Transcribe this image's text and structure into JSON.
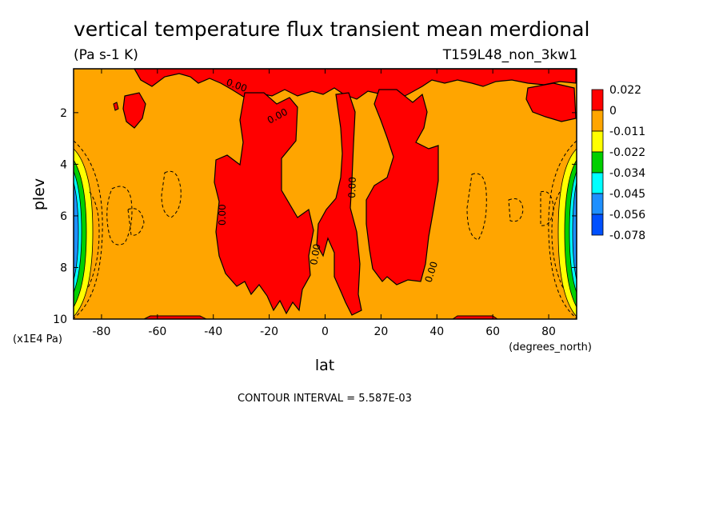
{
  "chart_data": {
    "type": "heatmap",
    "title": "vertical temperature flux transient mean merdional",
    "units": "(Pa s-1 K)",
    "dataset": "T159L48_non_3kw1",
    "xlabel": "lat",
    "xunits": "(degrees_north)",
    "ylabel": "plev",
    "yunits": "(x1E4 Pa)",
    "xlim": [
      -90,
      90
    ],
    "ylim": [
      0.3,
      10
    ],
    "y_inverted": true,
    "x_ticks": [
      -80,
      -60,
      -40,
      -20,
      0,
      20,
      40,
      60,
      80
    ],
    "x_tick_labels": [
      "-80",
      "-60",
      "-40",
      "-20",
      "0",
      "20",
      "40",
      "60",
      "80"
    ],
    "y_ticks": [
      2,
      4,
      6,
      8,
      10
    ],
    "y_tick_labels": [
      "2",
      "4",
      "6",
      "8",
      "10"
    ],
    "legend": {
      "placement": "right",
      "labels": [
        "0.022",
        "0",
        "-0.011",
        "-0.022",
        "-0.034",
        "-0.045",
        "-0.056",
        "-0.078"
      ],
      "colors": [
        "#ff0000",
        "#ffa500",
        "#ffff00",
        "#00d000",
        "#00ffff",
        "#1e90ff",
        "#0050ff"
      ]
    },
    "contour_labels": [
      "0.00",
      "0.00",
      "0.00",
      "0.00",
      "0.00",
      "0.00"
    ],
    "note": "CONTOUR INTERVAL = 5.587E-03"
  },
  "colors": {
    "positive": "#ff0000",
    "background_level": "#ffa500",
    "negative_1": "#ffff00",
    "negative_2": "#00d000",
    "negative_3": "#00ffff",
    "negative_4": "#1e90ff",
    "negative_5": "#0050ff"
  }
}
